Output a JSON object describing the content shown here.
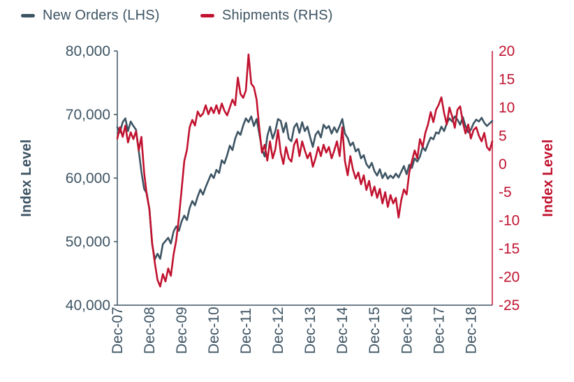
{
  "legend": {
    "items": [
      {
        "label": "New Orders (LHS)",
        "color": "#3D5463"
      },
      {
        "label": "Shipments (RHS)",
        "color": "#C1122F"
      }
    ]
  },
  "chart_data": {
    "type": "line",
    "frequency": "monthly",
    "grid": false,
    "legend_position": "top-left",
    "x_tick_labels": [
      "Dec-07",
      "Dec-08",
      "Dec-09",
      "Dec-10",
      "Dec-11",
      "Dec-12",
      "Dec-13",
      "Dec-14",
      "Dec-15",
      "Dec-16",
      "Dec-17",
      "Dec-18"
    ],
    "x": [
      "Dec-07",
      "Jan-08",
      "Feb-08",
      "Mar-08",
      "Apr-08",
      "May-08",
      "Jun-08",
      "Jul-08",
      "Aug-08",
      "Sep-08",
      "Oct-08",
      "Nov-08",
      "Dec-08",
      "Jan-09",
      "Feb-09",
      "Mar-09",
      "Apr-09",
      "May-09",
      "Jun-09",
      "Jul-09",
      "Aug-09",
      "Sep-09",
      "Oct-09",
      "Nov-09",
      "Dec-09",
      "Jan-10",
      "Feb-10",
      "Mar-10",
      "Apr-10",
      "May-10",
      "Jun-10",
      "Jul-10",
      "Aug-10",
      "Sep-10",
      "Oct-10",
      "Nov-10",
      "Dec-10",
      "Jan-11",
      "Feb-11",
      "Mar-11",
      "Apr-11",
      "May-11",
      "Jun-11",
      "Jul-11",
      "Aug-11",
      "Sep-11",
      "Oct-11",
      "Nov-11",
      "Dec-11",
      "Jan-12",
      "Feb-12",
      "Mar-12",
      "Apr-12",
      "May-12",
      "Jun-12",
      "Jul-12",
      "Aug-12",
      "Sep-12",
      "Oct-12",
      "Nov-12",
      "Dec-12",
      "Jan-13",
      "Feb-13",
      "Mar-13",
      "Apr-13",
      "May-13",
      "Jun-13",
      "Jul-13",
      "Aug-13",
      "Sep-13",
      "Oct-13",
      "Nov-13",
      "Dec-13",
      "Jan-14",
      "Feb-14",
      "Mar-14",
      "Apr-14",
      "May-14",
      "Jun-14",
      "Jul-14",
      "Aug-14",
      "Sep-14",
      "Oct-14",
      "Nov-14",
      "Dec-14",
      "Jan-15",
      "Feb-15",
      "Mar-15",
      "Apr-15",
      "May-15",
      "Jun-15",
      "Jul-15",
      "Aug-15",
      "Sep-15",
      "Oct-15",
      "Nov-15",
      "Dec-15",
      "Jan-16",
      "Feb-16",
      "Mar-16",
      "Apr-16",
      "May-16",
      "Jun-16",
      "Jul-16",
      "Aug-16",
      "Sep-16",
      "Oct-16",
      "Nov-16",
      "Dec-16",
      "Jan-17",
      "Feb-17",
      "Mar-17",
      "Apr-17",
      "May-17",
      "Jun-17",
      "Jul-17",
      "Aug-17",
      "Sep-17",
      "Oct-17",
      "Nov-17",
      "Dec-17",
      "Jan-18",
      "Feb-18",
      "Mar-18",
      "Apr-18",
      "May-18",
      "Jun-18",
      "Jul-18",
      "Aug-18",
      "Sep-18",
      "Oct-18",
      "Nov-18",
      "Dec-18",
      "Jan-19",
      "Feb-19",
      "Mar-19",
      "Apr-19",
      "May-19",
      "Jun-19",
      "Jul-19",
      "Aug-19"
    ],
    "series": [
      {
        "name": "New Orders (LHS)",
        "axis": "left",
        "color": "#3D5463",
        "values": [
          68000,
          67200,
          68800,
          69400,
          67400,
          68900,
          68200,
          67600,
          64300,
          61000,
          58300,
          57600,
          55000,
          49600,
          47200,
          48100,
          47300,
          49600,
          50100,
          50600,
          49700,
          51600,
          52400,
          51700,
          53200,
          54100,
          53400,
          55300,
          56400,
          55700,
          57100,
          58200,
          57400,
          58600,
          59600,
          60600,
          60000,
          61300,
          60800,
          62800,
          62300,
          63600,
          65100,
          64400,
          66200,
          67300,
          66800,
          68300,
          69400,
          68800,
          69700,
          68200,
          69300,
          67000,
          64600,
          63400,
          66600,
          68100,
          66200,
          67400,
          69300,
          69000,
          67200,
          68700,
          66200,
          65800,
          68000,
          68600,
          67100,
          68800,
          67400,
          68100,
          66400,
          64900,
          66800,
          67400,
          66400,
          68400,
          67800,
          68200,
          67000,
          68000,
          67200,
          68200,
          69300,
          67000,
          66300,
          65100,
          65600,
          64200,
          64600,
          63100,
          63600,
          62200,
          61600,
          62400,
          61100,
          60400,
          61400,
          60000,
          60800,
          59900,
          60400,
          60000,
          60700,
          60100,
          61000,
          61900,
          60600,
          62100,
          61600,
          63100,
          62600,
          63400,
          64900,
          64300,
          65400,
          66400,
          66100,
          67200,
          67000,
          68100,
          67400,
          68600,
          69400,
          68900,
          69700,
          69200,
          68400,
          69600,
          68200,
          67200,
          67600,
          68600,
          69200,
          68900,
          69500,
          68700,
          68200,
          68600,
          69000
        ]
      },
      {
        "name": "Shipments (RHS)",
        "axis": "right",
        "color": "#C1122F",
        "values": [
          4.5,
          6.5,
          4.8,
          6.8,
          3.8,
          5.6,
          4.4,
          5.8,
          2.4,
          4.8,
          -1.5,
          -5.5,
          -8,
          -14,
          -17.5,
          -20.5,
          -21.7,
          -19.5,
          -20.8,
          -18.5,
          -19.8,
          -16,
          -13.5,
          -9.5,
          -4.5,
          0.5,
          2.5,
          6.5,
          7.8,
          6.8,
          9.3,
          8.4,
          8.9,
          10.4,
          8.8,
          10,
          9,
          10.4,
          8.9,
          10.7,
          9.4,
          8.6,
          10,
          11.4,
          10.4,
          15.3,
          12.4,
          11.7,
          13,
          19.4,
          14.2,
          13.6,
          11.4,
          6.4,
          2,
          3.4,
          0.6,
          4,
          1,
          2.6,
          6,
          2,
          0,
          3,
          1,
          0.4,
          3.4,
          4.4,
          1.4,
          4,
          2.4,
          1,
          2,
          -0.5,
          1,
          3,
          1.4,
          3.4,
          2,
          3,
          1,
          2.4,
          4,
          1.4,
          6.5,
          0.5,
          -2,
          1.4,
          -1,
          -2.6,
          -1.5,
          -3.6,
          -2,
          -4.6,
          -3,
          -5.6,
          -4,
          -6,
          -4.4,
          -7,
          -5,
          -7.6,
          -5.5,
          -7,
          -6,
          -9.5,
          -6.4,
          -4.5,
          -5.4,
          -1.5,
          0.5,
          2.4,
          1,
          4.4,
          3,
          5.5,
          7,
          9.2,
          7.4,
          9.6,
          10.5,
          11.8,
          9,
          7,
          10,
          8.4,
          6.4,
          9.6,
          10.2,
          7.4,
          5.4,
          7,
          4.5,
          6,
          6.5,
          5,
          4,
          5.5,
          3,
          2.4,
          4
        ]
      }
    ],
    "left_axis": {
      "title": "Index Level",
      "min": 40000,
      "max": 80000,
      "tick_values": [
        80000,
        70000,
        60000,
        50000,
        40000
      ],
      "tick_labels": [
        "80,000",
        "70,000",
        "60,000",
        "50,000",
        "40,000"
      ],
      "color": "#3D5463"
    },
    "right_axis": {
      "title": "Index Level",
      "min": -25,
      "max": 20,
      "tick_values": [
        20,
        15,
        10,
        5,
        0,
        -5,
        -10,
        -15,
        -20,
        -25
      ],
      "color": "#C1122F"
    }
  }
}
